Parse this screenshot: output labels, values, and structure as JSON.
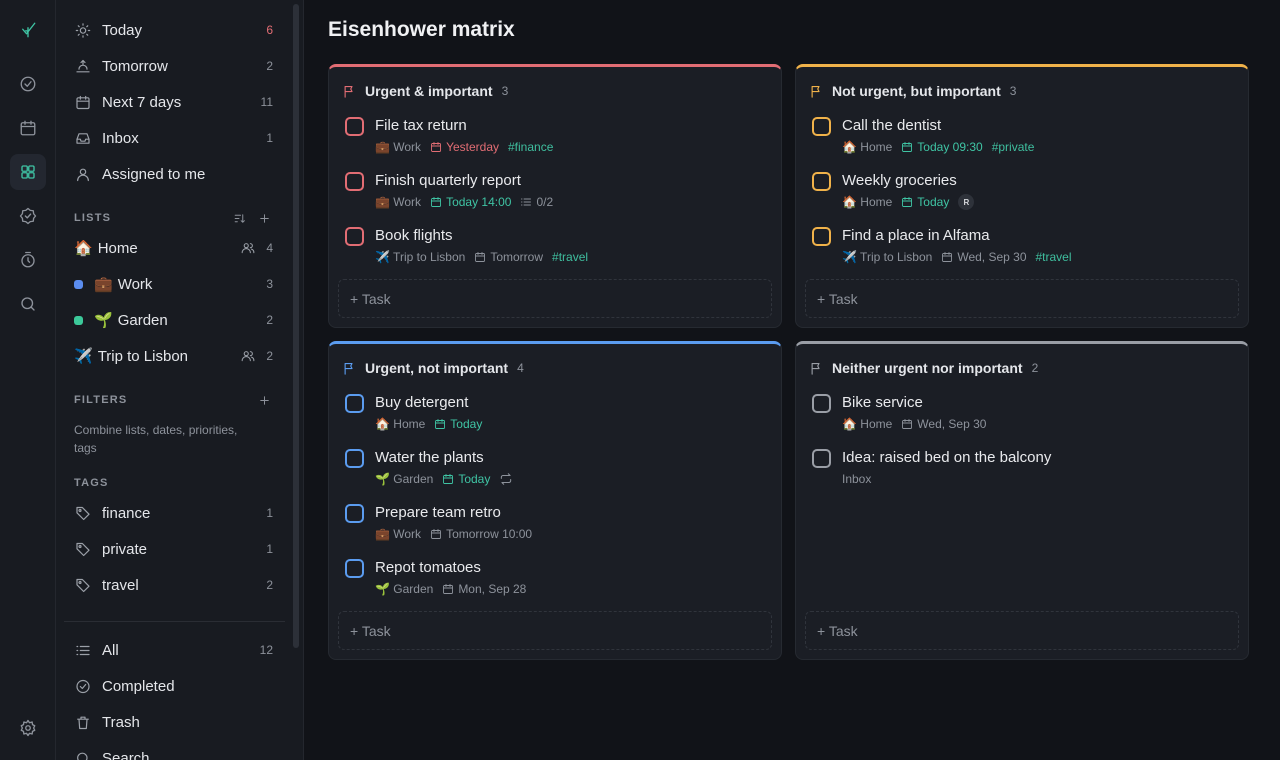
{
  "nav": [
    {
      "label": "Today",
      "count": 6,
      "count_tone": "alert"
    },
    {
      "label": "Tomorrow",
      "count": 2
    },
    {
      "label": "Next 7 days",
      "count": 11
    },
    {
      "label": "Inbox",
      "count": 1
    },
    {
      "label": "Assigned to me"
    }
  ],
  "lists": {
    "heading": "LISTS",
    "items": [
      {
        "emoji": "🏠",
        "name": "Home",
        "count": 4,
        "shared": true
      },
      {
        "emoji": "💼",
        "name": "Work",
        "count": 3,
        "dot": "#5b8def"
      },
      {
        "emoji": "🌱",
        "name": "Garden",
        "count": 2,
        "dot": "#3cc99a"
      },
      {
        "emoji": "✈️",
        "name": "Trip to Lisbon",
        "count": 2,
        "shared": true
      }
    ]
  },
  "filters": {
    "heading": "FILTERS",
    "hint": "Combine lists, dates, priorities, tags"
  },
  "tags": {
    "heading": "TAGS",
    "items": [
      {
        "name": "finance",
        "count": 1
      },
      {
        "name": "private",
        "count": 1
      },
      {
        "name": "travel",
        "count": 2
      }
    ]
  },
  "footer_nav": [
    {
      "label": "All",
      "count": 12
    },
    {
      "label": "Completed"
    },
    {
      "label": "Trash"
    },
    {
      "label": "Search"
    }
  ],
  "main": {
    "title": "Eisenhower matrix",
    "add_label": "+ Task",
    "quadrants": [
      {
        "title": "Urgent & important",
        "count": 3,
        "color": "#e26d74",
        "tasks": [
          {
            "title": "File tax return",
            "meta": [
              {
                "kind": "list",
                "text": "💼 Work"
              },
              {
                "kind": "date",
                "text": "Yesterday",
                "tone": "overdue"
              },
              {
                "kind": "tag",
                "text": "#finance"
              }
            ]
          },
          {
            "title": "Finish quarterly report",
            "meta": [
              {
                "kind": "list",
                "text": "💼 Work"
              },
              {
                "kind": "date",
                "text": "Today 14:00",
                "tone": "today"
              },
              {
                "kind": "subtasks",
                "text": "0/2"
              }
            ]
          },
          {
            "title": "Book flights",
            "meta": [
              {
                "kind": "list",
                "text": "✈️ Trip to Lisbon"
              },
              {
                "kind": "date",
                "text": "Tomorrow"
              },
              {
                "kind": "tag",
                "text": "#travel"
              }
            ]
          }
        ]
      },
      {
        "title": "Not urgent, but important",
        "count": 3,
        "color": "#f0b24a",
        "tasks": [
          {
            "title": "Call the dentist",
            "meta": [
              {
                "kind": "list",
                "text": "🏠 Home"
              },
              {
                "kind": "date",
                "text": "Today 09:30",
                "tone": "today"
              },
              {
                "kind": "tag",
                "text": "#private"
              }
            ]
          },
          {
            "title": "Weekly groceries",
            "meta": [
              {
                "kind": "list",
                "text": "🏠 Home"
              },
              {
                "kind": "date",
                "text": "Today",
                "tone": "today"
              },
              {
                "kind": "avatar",
                "text": "R"
              }
            ]
          },
          {
            "title": "Find a place in Alfama",
            "meta": [
              {
                "kind": "list",
                "text": "✈️ Trip to Lisbon"
              },
              {
                "kind": "date",
                "text": "Wed, Sep 30"
              },
              {
                "kind": "tag",
                "text": "#travel"
              }
            ]
          }
        ]
      },
      {
        "title": "Urgent, not important",
        "count": 4,
        "color": "#5b9cf0",
        "tasks": [
          {
            "title": "Buy detergent",
            "meta": [
              {
                "kind": "list",
                "text": "🏠 Home"
              },
              {
                "kind": "date",
                "text": "Today",
                "tone": "today"
              }
            ]
          },
          {
            "title": "Water the plants",
            "meta": [
              {
                "kind": "list",
                "text": "🌱 Garden"
              },
              {
                "kind": "date",
                "text": "Today",
                "tone": "today"
              },
              {
                "kind": "repeat"
              }
            ]
          },
          {
            "title": "Prepare team retro",
            "meta": [
              {
                "kind": "list",
                "text": "💼 Work"
              },
              {
                "kind": "date",
                "text": "Tomorrow 10:00"
              }
            ]
          },
          {
            "title": "Repot tomatoes",
            "meta": [
              {
                "kind": "list",
                "text": "🌱 Garden"
              },
              {
                "kind": "date",
                "text": "Mon, Sep 28"
              }
            ]
          }
        ]
      },
      {
        "title": "Neither urgent nor important",
        "count": 2,
        "color": "#9a9ea6",
        "tasks": [
          {
            "title": "Bike service",
            "meta": [
              {
                "kind": "list",
                "text": "🏠 Home"
              },
              {
                "kind": "date",
                "text": "Wed, Sep 30"
              }
            ]
          },
          {
            "title": "Idea: raised bed on the balcony",
            "meta": [
              {
                "kind": "list",
                "text": "Inbox"
              }
            ]
          }
        ]
      }
    ]
  }
}
